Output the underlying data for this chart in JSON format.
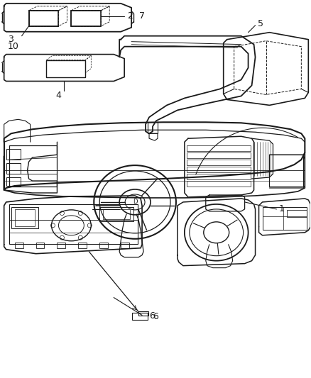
{
  "background_color": "#ffffff",
  "line_color": "#1a1a1a",
  "fig_width": 4.38,
  "fig_height": 5.33,
  "dpi": 100,
  "label_fontsize": 8.5,
  "line_width": 0.9
}
